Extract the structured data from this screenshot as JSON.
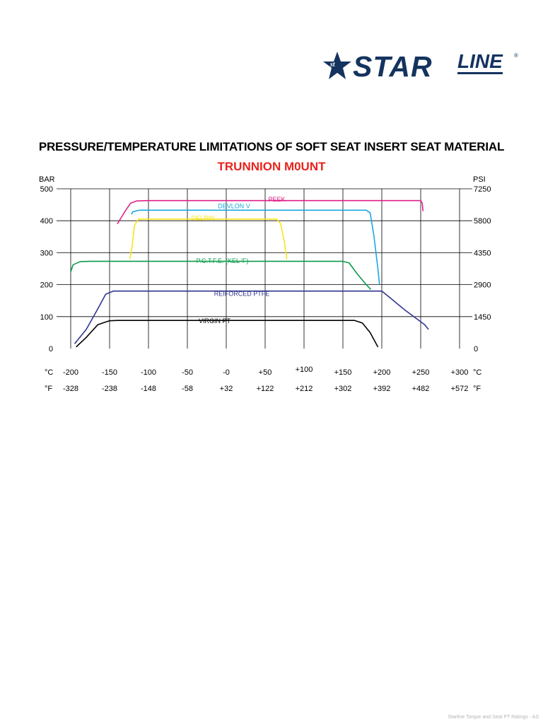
{
  "brand": {
    "name": "STAR",
    "sub": "LINE",
    "initials": "st",
    "registered": "®",
    "color": "#14335f"
  },
  "chart_data": {
    "type": "line",
    "title": "PRESSURE/TEMPERATURE LIMITATIONS OF SOFT SEAT INSERT SEAT MATERIAL",
    "subtitle": "TRUNNION M0UNT",
    "subtitle_color": "#e8231c",
    "y_left_unit": "BAR",
    "y_right_unit": "PSI",
    "ylim": [
      0,
      500
    ],
    "xlim": [
      -200,
      300
    ],
    "grid": true,
    "y_ticks_left": [
      "500",
      "400",
      "300",
      "200",
      "100",
      "0"
    ],
    "y_ticks_right": [
      "7250",
      "5800",
      "4350",
      "2900",
      "1450",
      "0"
    ],
    "x_row_c_unit": "°C",
    "x_row_f_unit": "°F",
    "x_ticks_c": [
      "-200",
      "-150",
      "-100",
      "-50",
      "-0",
      "+50",
      "+100",
      "+150",
      "+200",
      "+250",
      "+300"
    ],
    "x_ticks_f": [
      "-328",
      "-238",
      "-148",
      "-58",
      "+32",
      "+122",
      "+212",
      "+302",
      "+392",
      "+482",
      "+572"
    ],
    "x_tick_values_c": [
      -200,
      -150,
      -100,
      -50,
      0,
      50,
      100,
      150,
      200,
      250,
      300
    ],
    "series": [
      {
        "name": "PEEK",
        "color": "#e0218a",
        "label_at": [
          65,
          460
        ],
        "points": [
          [
            -140,
            390
          ],
          [
            -130,
            430
          ],
          [
            -123,
            455
          ],
          [
            -115,
            462
          ],
          [
            -100,
            463
          ],
          [
            250,
            463
          ],
          [
            252,
            455
          ],
          [
            253,
            430
          ]
        ]
      },
      {
        "name": "DEVLON V",
        "color": "#1aa7e0",
        "label_at": [
          10,
          439
        ],
        "points": [
          [
            -122,
            420
          ],
          [
            -120,
            428
          ],
          [
            -112,
            433
          ],
          [
            -100,
            433
          ],
          [
            180,
            433
          ],
          [
            185,
            425
          ],
          [
            190,
            350
          ],
          [
            195,
            250
          ],
          [
            197,
            200
          ]
        ]
      },
      {
        "name": "DELRIN",
        "color": "#f7e51e",
        "label_at": [
          -30,
          402
        ],
        "points": [
          [
            -124,
            280
          ],
          [
            -121,
            320
          ],
          [
            -118,
            385
          ],
          [
            -113,
            405
          ],
          [
            -100,
            405
          ],
          [
            65,
            405
          ],
          [
            70,
            390
          ],
          [
            75,
            330
          ],
          [
            78,
            280
          ]
        ]
      },
      {
        "name": "P.C.T.F.E. (KEL 'F)",
        "color": "#0a9a4b",
        "label_at": [
          -5,
          268
        ],
        "points": [
          [
            -200,
            240
          ],
          [
            -197,
            262
          ],
          [
            -188,
            272
          ],
          [
            -175,
            273
          ],
          [
            150,
            273
          ],
          [
            158,
            268
          ],
          [
            168,
            235
          ],
          [
            180,
            200
          ],
          [
            186,
            185
          ]
        ]
      },
      {
        "name": "REIFORCED PTFE",
        "color": "#303590",
        "label_at": [
          20,
          165
        ],
        "points": [
          [
            -195,
            15
          ],
          [
            -180,
            60
          ],
          [
            -165,
            125
          ],
          [
            -155,
            170
          ],
          [
            -145,
            180
          ],
          [
            200,
            180
          ],
          [
            210,
            160
          ],
          [
            230,
            120
          ],
          [
            255,
            75
          ],
          [
            260,
            60
          ]
        ]
      },
      {
        "name": "VIRGIN PT",
        "color": "#000000",
        "label_at": [
          -15,
          80
        ],
        "points": [
          [
            -193,
            5
          ],
          [
            -180,
            35
          ],
          [
            -165,
            75
          ],
          [
            -150,
            87
          ],
          [
            -140,
            88
          ],
          [
            -100,
            88
          ],
          [
            165,
            88
          ],
          [
            175,
            80
          ],
          [
            185,
            50
          ],
          [
            195,
            5
          ]
        ]
      }
    ]
  },
  "footer": "Starline Torque and Seat PT Ratings - AS"
}
